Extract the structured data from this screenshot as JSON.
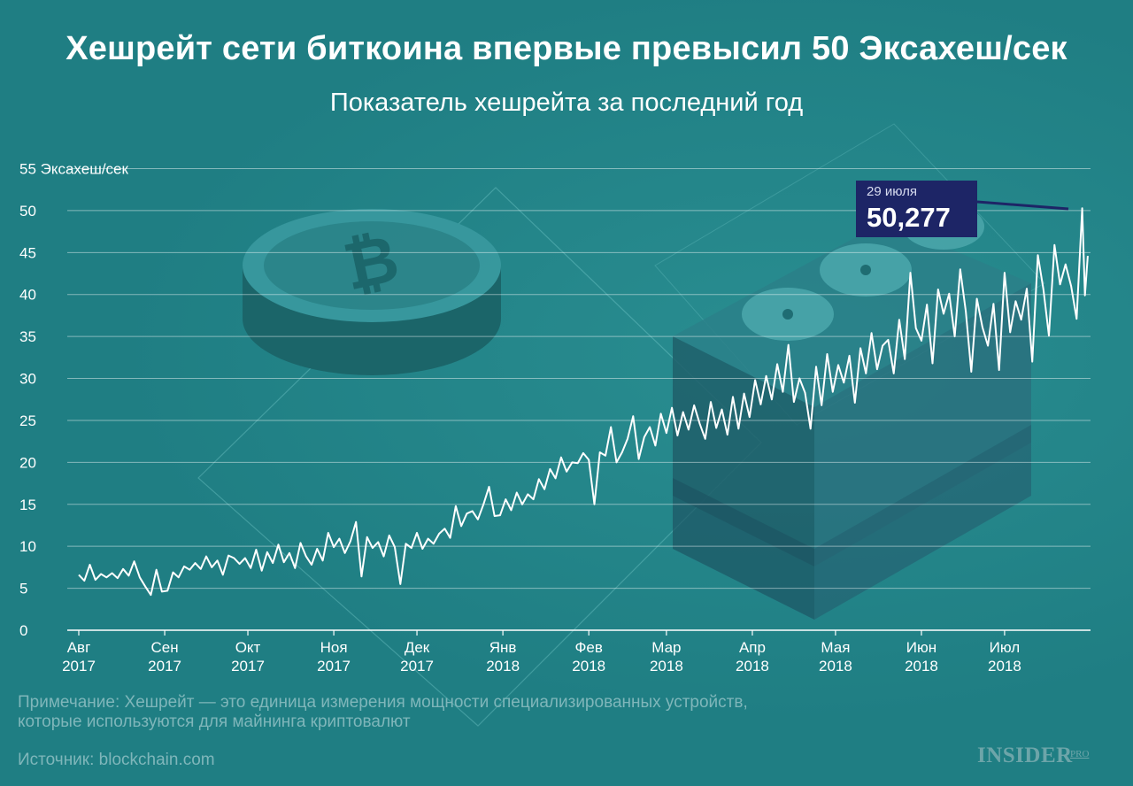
{
  "header": {
    "title": "Хешрейт сети биткоина впервые превысил 50 Эксахеш/сек",
    "subtitle": "Показатель хешрейта за последний год"
  },
  "callout": {
    "date": "29 июля",
    "value": "50,277"
  },
  "footer": {
    "note_line1": "Примечание: Хешрейт — это единица измерения мощности специализированных устройств,",
    "note_line2": "которые используются для майнинга криптовалют",
    "source": "Источник: blockchain.com",
    "logo": "INSIDER",
    "logo_sub": "PRO"
  },
  "colors": {
    "background": "#1f7e83",
    "line": "#ffffff",
    "callout": "#1d2566"
  },
  "chart_data": {
    "type": "line",
    "ylabel": "55 Эксахеш/сек",
    "ylim": [
      0,
      55
    ],
    "y_ticks": [
      0,
      5,
      10,
      15,
      20,
      25,
      30,
      35,
      40,
      45,
      50,
      "55 Эксахеш/сек"
    ],
    "x_ticks": [
      {
        "month": "Авг",
        "year": "2017",
        "day": 0
      },
      {
        "month": "Сен",
        "year": "2017",
        "day": 31
      },
      {
        "month": "Окт",
        "year": "2017",
        "day": 61
      },
      {
        "month": "Ноя",
        "year": "2017",
        "day": 92
      },
      {
        "month": "Дек",
        "year": "2017",
        "day": 122
      },
      {
        "month": "Янв",
        "year": "2018",
        "day": 153
      },
      {
        "month": "Фев",
        "year": "2018",
        "day": 184
      },
      {
        "month": "Мар",
        "year": "2018",
        "day": 212
      },
      {
        "month": "Апр",
        "year": "2018",
        "day": 243
      },
      {
        "month": "Мая",
        "year": "2018",
        "day": 273
      },
      {
        "month": "Июн",
        "year": "2018",
        "day": 304
      },
      {
        "month": "Июл",
        "year": "2018",
        "day": 334
      }
    ],
    "x_range": [
      "2017-08-01",
      "2018-08-01"
    ],
    "series": [
      {
        "points": [
          [
            "2017-08-01",
            6.6
          ],
          [
            "2017-08-03",
            5.9
          ],
          [
            "2017-08-05",
            7.8
          ],
          [
            "2017-08-07",
            6.0
          ],
          [
            "2017-08-09",
            6.7
          ],
          [
            "2017-08-11",
            6.3
          ],
          [
            "2017-08-13",
            6.8
          ],
          [
            "2017-08-15",
            6.2
          ],
          [
            "2017-08-17",
            7.3
          ],
          [
            "2017-08-19",
            6.5
          ],
          [
            "2017-08-21",
            8.2
          ],
          [
            "2017-08-23",
            6.3
          ],
          [
            "2017-08-25",
            5.2
          ],
          [
            "2017-08-27",
            4.2
          ],
          [
            "2017-08-29",
            7.2
          ],
          [
            "2017-08-31",
            4.6
          ],
          [
            "2017-09-02",
            4.7
          ],
          [
            "2017-09-04",
            6.9
          ],
          [
            "2017-09-06",
            6.3
          ],
          [
            "2017-09-08",
            7.6
          ],
          [
            "2017-09-10",
            7.2
          ],
          [
            "2017-09-12",
            8.0
          ],
          [
            "2017-09-14",
            7.3
          ],
          [
            "2017-09-16",
            8.8
          ],
          [
            "2017-09-18",
            7.5
          ],
          [
            "2017-09-20",
            8.3
          ],
          [
            "2017-09-22",
            6.6
          ],
          [
            "2017-09-24",
            8.9
          ],
          [
            "2017-09-26",
            8.6
          ],
          [
            "2017-09-28",
            7.9
          ],
          [
            "2017-09-30",
            8.6
          ],
          [
            "2017-10-02",
            7.4
          ],
          [
            "2017-10-04",
            9.6
          ],
          [
            "2017-10-06",
            7.1
          ],
          [
            "2017-10-08",
            9.3
          ],
          [
            "2017-10-10",
            8.0
          ],
          [
            "2017-10-12",
            10.2
          ],
          [
            "2017-10-14",
            8.1
          ],
          [
            "2017-10-16",
            9.2
          ],
          [
            "2017-10-18",
            7.4
          ],
          [
            "2017-10-20",
            10.4
          ],
          [
            "2017-10-22",
            8.8
          ],
          [
            "2017-10-24",
            7.8
          ],
          [
            "2017-10-26",
            9.7
          ],
          [
            "2017-10-28",
            8.3
          ],
          [
            "2017-10-30",
            11.6
          ],
          [
            "2017-11-01",
            9.9
          ],
          [
            "2017-11-03",
            10.9
          ],
          [
            "2017-11-05",
            9.2
          ],
          [
            "2017-11-07",
            10.6
          ],
          [
            "2017-11-09",
            12.9
          ],
          [
            "2017-11-11",
            6.4
          ],
          [
            "2017-11-13",
            11.1
          ],
          [
            "2017-11-15",
            9.8
          ],
          [
            "2017-11-17",
            10.5
          ],
          [
            "2017-11-19",
            8.8
          ],
          [
            "2017-11-21",
            11.3
          ],
          [
            "2017-11-23",
            9.9
          ],
          [
            "2017-11-25",
            5.5
          ],
          [
            "2017-11-27",
            10.3
          ],
          [
            "2017-11-29",
            9.8
          ],
          [
            "2017-12-01",
            11.6
          ],
          [
            "2017-12-03",
            9.7
          ],
          [
            "2017-12-05",
            10.9
          ],
          [
            "2017-12-07",
            10.3
          ],
          [
            "2017-12-09",
            11.5
          ],
          [
            "2017-12-11",
            12.1
          ],
          [
            "2017-12-13",
            11.0
          ],
          [
            "2017-12-15",
            14.8
          ],
          [
            "2017-12-17",
            12.4
          ],
          [
            "2017-12-19",
            13.9
          ],
          [
            "2017-12-21",
            14.2
          ],
          [
            "2017-12-23",
            13.2
          ],
          [
            "2017-12-25",
            15.0
          ],
          [
            "2017-12-27",
            17.1
          ],
          [
            "2017-12-29",
            13.6
          ],
          [
            "2017-12-31",
            13.7
          ],
          [
            "2018-01-02",
            15.6
          ],
          [
            "2018-01-04",
            14.3
          ],
          [
            "2018-01-06",
            16.4
          ],
          [
            "2018-01-08",
            15.0
          ],
          [
            "2018-01-10",
            16.2
          ],
          [
            "2018-01-12",
            15.6
          ],
          [
            "2018-01-14",
            18.0
          ],
          [
            "2018-01-16",
            16.8
          ],
          [
            "2018-01-18",
            19.2
          ],
          [
            "2018-01-20",
            18.1
          ],
          [
            "2018-01-22",
            20.6
          ],
          [
            "2018-01-24",
            18.9
          ],
          [
            "2018-01-26",
            20.0
          ],
          [
            "2018-01-28",
            19.9
          ],
          [
            "2018-01-30",
            21.1
          ],
          [
            "2018-02-01",
            20.3
          ],
          [
            "2018-02-03",
            15.0
          ],
          [
            "2018-02-05",
            21.2
          ],
          [
            "2018-02-07",
            20.8
          ],
          [
            "2018-02-09",
            24.2
          ],
          [
            "2018-02-11",
            20.0
          ],
          [
            "2018-02-13",
            21.2
          ],
          [
            "2018-02-15",
            22.8
          ],
          [
            "2018-02-17",
            25.5
          ],
          [
            "2018-02-19",
            20.4
          ],
          [
            "2018-02-21",
            23.0
          ],
          [
            "2018-02-23",
            24.2
          ],
          [
            "2018-02-25",
            22.0
          ],
          [
            "2018-02-27",
            25.8
          ],
          [
            "2018-03-01",
            23.5
          ],
          [
            "2018-03-03",
            26.5
          ],
          [
            "2018-03-05",
            23.2
          ],
          [
            "2018-03-07",
            26.0
          ],
          [
            "2018-03-09",
            23.9
          ],
          [
            "2018-03-11",
            26.8
          ],
          [
            "2018-03-13",
            24.6
          ],
          [
            "2018-03-15",
            22.8
          ],
          [
            "2018-03-17",
            27.2
          ],
          [
            "2018-03-19",
            24.1
          ],
          [
            "2018-03-21",
            26.3
          ],
          [
            "2018-03-23",
            23.3
          ],
          [
            "2018-03-25",
            27.8
          ],
          [
            "2018-03-27",
            24.0
          ],
          [
            "2018-03-29",
            28.2
          ],
          [
            "2018-03-31",
            25.4
          ],
          [
            "2018-04-02",
            29.8
          ],
          [
            "2018-04-04",
            26.9
          ],
          [
            "2018-04-06",
            30.3
          ],
          [
            "2018-04-08",
            27.5
          ],
          [
            "2018-04-10",
            31.7
          ],
          [
            "2018-04-12",
            28.4
          ],
          [
            "2018-04-14",
            34.0
          ],
          [
            "2018-04-16",
            27.2
          ],
          [
            "2018-04-18",
            30.0
          ],
          [
            "2018-04-20",
            28.3
          ],
          [
            "2018-04-22",
            24.0
          ],
          [
            "2018-04-24",
            31.4
          ],
          [
            "2018-04-26",
            26.8
          ],
          [
            "2018-04-28",
            32.9
          ],
          [
            "2018-04-30",
            28.4
          ],
          [
            "2018-05-02",
            31.6
          ],
          [
            "2018-05-04",
            29.5
          ],
          [
            "2018-05-06",
            32.7
          ],
          [
            "2018-05-08",
            27.1
          ],
          [
            "2018-05-10",
            33.6
          ],
          [
            "2018-05-12",
            30.6
          ],
          [
            "2018-05-14",
            35.4
          ],
          [
            "2018-05-16",
            31.1
          ],
          [
            "2018-05-18",
            33.9
          ],
          [
            "2018-05-20",
            34.6
          ],
          [
            "2018-05-22",
            30.6
          ],
          [
            "2018-05-24",
            37.0
          ],
          [
            "2018-05-26",
            32.3
          ],
          [
            "2018-05-28",
            42.6
          ],
          [
            "2018-05-30",
            36.0
          ],
          [
            "2018-06-01",
            34.5
          ],
          [
            "2018-06-03",
            38.8
          ],
          [
            "2018-06-05",
            31.8
          ],
          [
            "2018-06-07",
            40.6
          ],
          [
            "2018-06-09",
            37.7
          ],
          [
            "2018-06-11",
            40.1
          ],
          [
            "2018-06-13",
            35.0
          ],
          [
            "2018-06-15",
            43.0
          ],
          [
            "2018-06-17",
            38.0
          ],
          [
            "2018-06-19",
            30.8
          ],
          [
            "2018-06-21",
            39.5
          ],
          [
            "2018-06-23",
            36.1
          ],
          [
            "2018-06-25",
            33.9
          ],
          [
            "2018-06-27",
            38.9
          ],
          [
            "2018-06-29",
            31.0
          ],
          [
            "2018-07-01",
            42.6
          ],
          [
            "2018-07-03",
            35.5
          ],
          [
            "2018-07-05",
            39.2
          ],
          [
            "2018-07-07",
            37.0
          ],
          [
            "2018-07-09",
            40.7
          ],
          [
            "2018-07-11",
            32.0
          ],
          [
            "2018-07-13",
            44.7
          ],
          [
            "2018-07-15",
            40.6
          ],
          [
            "2018-07-17",
            35.1
          ],
          [
            "2018-07-19",
            45.9
          ],
          [
            "2018-07-21",
            41.2
          ],
          [
            "2018-07-23",
            43.6
          ],
          [
            "2018-07-25",
            41.0
          ],
          [
            "2018-07-27",
            37.1
          ],
          [
            "2018-07-29",
            50.277
          ],
          [
            "2018-07-30",
            39.9
          ],
          [
            "2018-07-31",
            44.6
          ]
        ]
      }
    ]
  }
}
